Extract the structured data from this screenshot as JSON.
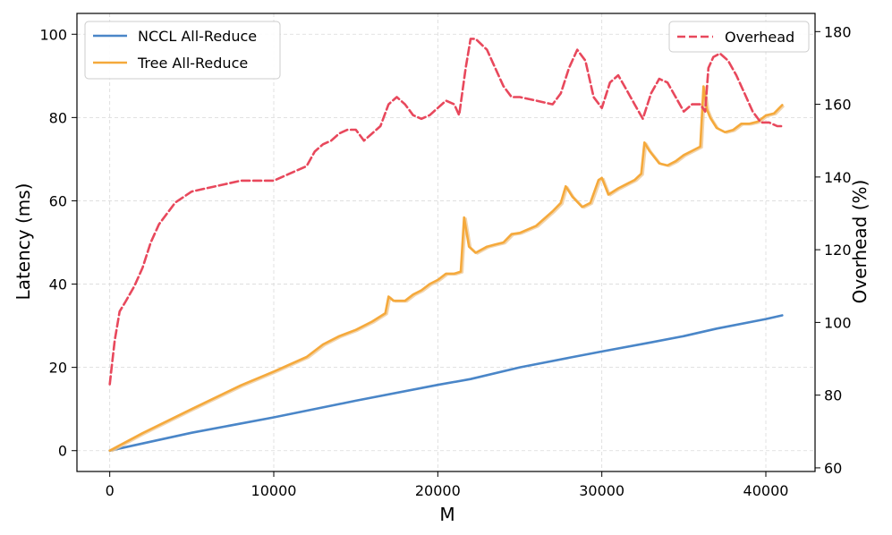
{
  "chart_data": {
    "type": "line",
    "xlabel": "M",
    "ylabel_left": "Latency (ms)",
    "ylabel_right": "Overhead (%)",
    "xlim": [
      -2000,
      43000
    ],
    "ylim_left": [
      -5,
      105
    ],
    "ylim_right": [
      59,
      185
    ],
    "xticks": [
      0,
      10000,
      20000,
      30000,
      40000
    ],
    "yticks_left": [
      0,
      20,
      40,
      60,
      80,
      100
    ],
    "yticks_right": [
      60,
      80,
      100,
      120,
      140,
      160,
      180
    ],
    "grid": true,
    "legend_left": {
      "placement": "top-left",
      "entries": [
        "NCCL All-Reduce",
        "Tree All-Reduce"
      ]
    },
    "legend_right": {
      "placement": "top-right",
      "entries": [
        "Overhead"
      ]
    },
    "colors": {
      "nccl": "#4a86c8",
      "tree": "#f5a93b",
      "tree_raw": "#efc997",
      "overhead": "#e8485c",
      "grid": "#d9d9d9"
    },
    "series": [
      {
        "name": "NCCL All-Reduce",
        "axis": "left",
        "style": "solid",
        "x": [
          0,
          5000,
          10000,
          15000,
          20000,
          22000,
          25000,
          28000,
          30000,
          33000,
          35000,
          37000,
          40000,
          41000
        ],
        "y": [
          0,
          4.3,
          8.0,
          12.0,
          15.8,
          17.2,
          20.0,
          22.3,
          23.8,
          26.0,
          27.5,
          29.3,
          31.6,
          32.5
        ]
      },
      {
        "name": "Tree All-Reduce",
        "axis": "left",
        "style": "solid",
        "x": [
          0,
          2000,
          5000,
          8000,
          10000,
          12000,
          13000,
          14000,
          15000,
          16000,
          16800,
          17000,
          17300,
          18000,
          18500,
          19000,
          19500,
          20000,
          20500,
          21000,
          21400,
          21600,
          21900,
          22300,
          23000,
          23500,
          24000,
          24500,
          25000,
          26000,
          27000,
          27500,
          27800,
          28200,
          28800,
          29300,
          29800,
          30000,
          30400,
          31000,
          31500,
          32000,
          32400,
          32600,
          32900,
          33500,
          34000,
          34500,
          35000,
          35500,
          36000,
          36200,
          36400,
          36600,
          37000,
          37500,
          38000,
          38500,
          39000,
          39500,
          40000,
          40500,
          41000
        ],
        "y": [
          0,
          4.2,
          10.0,
          15.7,
          19.0,
          22.5,
          25.5,
          27.5,
          29.0,
          31.0,
          33.0,
          37.0,
          36.0,
          36.0,
          37.5,
          38.5,
          40.0,
          41.0,
          42.5,
          42.5,
          43.0,
          56.0,
          49.0,
          47.5,
          49.0,
          49.5,
          50.0,
          52.0,
          52.3,
          54.0,
          57.5,
          59.5,
          63.5,
          61.0,
          58.5,
          59.5,
          65.0,
          65.5,
          61.5,
          63.0,
          64.0,
          65.0,
          66.5,
          74.0,
          72.0,
          69.0,
          68.5,
          69.5,
          71.0,
          72.0,
          73.0,
          87.5,
          82.0,
          80.0,
          77.5,
          76.5,
          77.0,
          78.5,
          78.5,
          79.0,
          80.5,
          81.0,
          83.0
        ]
      },
      {
        "name": "Overhead",
        "axis": "right",
        "style": "dashed",
        "x": [
          0,
          100,
          300,
          600,
          1000,
          1500,
          2000,
          2500,
          3000,
          4000,
          5000,
          6000,
          7000,
          8000,
          9000,
          10000,
          11000,
          12000,
          12500,
          13000,
          13500,
          14000,
          14500,
          15000,
          15500,
          16000,
          16500,
          17000,
          17500,
          18000,
          18500,
          19000,
          19500,
          20000,
          20500,
          21000,
          21300,
          21700,
          22000,
          22300,
          23000,
          23500,
          24000,
          24500,
          25000,
          26000,
          27000,
          27500,
          28000,
          28500,
          29000,
          29500,
          30000,
          30500,
          31000,
          31500,
          32000,
          32500,
          33000,
          33500,
          34000,
          34500,
          35000,
          35500,
          36000,
          36300,
          36500,
          36800,
          37200,
          37700,
          38200,
          38700,
          39200,
          39700,
          40200,
          40700,
          41000
        ],
        "y": [
          83,
          87,
          95,
          103,
          106,
          110,
          115,
          122,
          127,
          133,
          136,
          137,
          138,
          139,
          139,
          139,
          141,
          143,
          147,
          149,
          150,
          152,
          153,
          153,
          150,
          152,
          154,
          160,
          162,
          160,
          157,
          156,
          157,
          159,
          161,
          160,
          157,
          170,
          178,
          178,
          175,
          170,
          165,
          162,
          162,
          161,
          160,
          163,
          170,
          175,
          172,
          162,
          159,
          166,
          168,
          164,
          160,
          156,
          163,
          167,
          166,
          162,
          158,
          160,
          160,
          158,
          170,
          173,
          174,
          172,
          168,
          163,
          158,
          155,
          155,
          154,
          154
        ]
      }
    ]
  }
}
